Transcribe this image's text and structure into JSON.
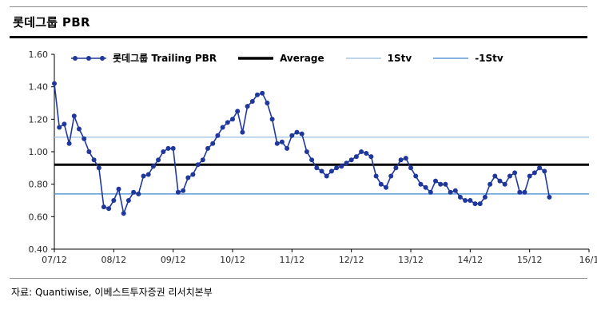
{
  "header": {
    "title": "롯데그룹  PBR"
  },
  "footer": {
    "source": "자료: Quantiwise, 이베스트투자증권 리서치본부"
  },
  "legend": {
    "items": [
      {
        "slug": "trailing-pbr",
        "label": "롯데그룹 Trailing PBR",
        "style": "line-marker",
        "color": "#20389B"
      },
      {
        "slug": "average",
        "label": "Average",
        "style": "thick-line",
        "color": "#000000"
      },
      {
        "slug": "plus-1stv",
        "label": "1Stv",
        "style": "line",
        "color": "#A9C7E6"
      },
      {
        "slug": "minus-1stv",
        "label": "-1Stv",
        "style": "line",
        "color": "#5B9BD5"
      }
    ]
  },
  "chart_data": {
    "type": "line",
    "title": "롯데그룹 PBR",
    "xlabel": "",
    "ylabel": "",
    "ylim": [
      0.4,
      1.6
    ],
    "y_ticks": [
      "0.40",
      "0.60",
      "0.80",
      "1.00",
      "1.20",
      "1.40",
      "1.60"
    ],
    "x_tick_labels": [
      "07/12",
      "08/12",
      "09/12",
      "10/12",
      "11/12",
      "12/12",
      "13/12",
      "14/12",
      "15/12",
      "16/1"
    ],
    "x_tick_months": [
      0,
      12,
      24,
      36,
      48,
      60,
      72,
      84,
      96,
      108
    ],
    "x_range_months": [
      0,
      108
    ],
    "grid": false,
    "legend_position": "top-inside",
    "series": [
      {
        "name": "롯데그룹 Trailing PBR",
        "slug": "trailing-pbr",
        "type": "line-marker",
        "color": "#20389B",
        "x_start_month": 0,
        "values": [
          1.42,
          1.15,
          1.17,
          1.05,
          1.22,
          1.14,
          1.08,
          1.0,
          0.95,
          0.9,
          0.66,
          0.65,
          0.7,
          0.77,
          0.62,
          0.7,
          0.75,
          0.74,
          0.85,
          0.86,
          0.91,
          0.95,
          1.0,
          1.02,
          1.02,
          0.75,
          0.76,
          0.84,
          0.86,
          0.92,
          0.95,
          1.02,
          1.05,
          1.1,
          1.15,
          1.18,
          1.2,
          1.25,
          1.12,
          1.28,
          1.31,
          1.35,
          1.36,
          1.3,
          1.2,
          1.05,
          1.06,
          1.02,
          1.1,
          1.12,
          1.11,
          1.0,
          0.95,
          0.9,
          0.88,
          0.85,
          0.88,
          0.9,
          0.91,
          0.93,
          0.95,
          0.97,
          1.0,
          0.99,
          0.97,
          0.85,
          0.8,
          0.78,
          0.85,
          0.9,
          0.95,
          0.96,
          0.9,
          0.85,
          0.8,
          0.78,
          0.75,
          0.82,
          0.8,
          0.8,
          0.75,
          0.76,
          0.72,
          0.7,
          0.7,
          0.68,
          0.68,
          0.72,
          0.8,
          0.85,
          0.82,
          0.8,
          0.85,
          0.87,
          0.75,
          0.75,
          0.85,
          0.87,
          0.9,
          0.88,
          0.72
        ]
      },
      {
        "name": "Average",
        "slug": "average",
        "type": "hline",
        "color": "#000000",
        "value": 0.92,
        "width": 3
      },
      {
        "name": "1Stv",
        "slug": "plus-1stv",
        "type": "hline",
        "color": "#A9C7E6",
        "value": 1.09,
        "width": 1.5
      },
      {
        "name": "-1Stv",
        "slug": "minus-1stv",
        "type": "hline",
        "color": "#5B9BD5",
        "value": 0.74,
        "width": 1.5
      }
    ]
  }
}
